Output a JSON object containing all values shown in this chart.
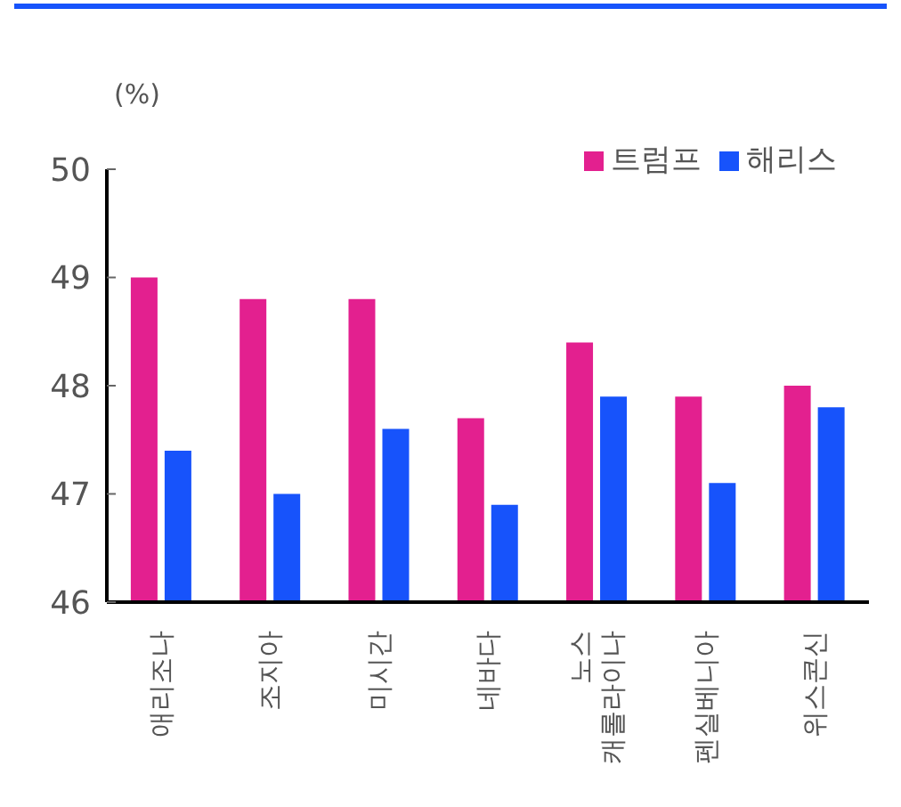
{
  "chart_data": {
    "type": "bar",
    "ylabel": "(%)",
    "categories": [
      "애리조나",
      "조지아",
      "미시간",
      "네바다",
      "노스 캐롤라이나",
      "펜실베니아",
      "위스콘신"
    ],
    "series": [
      {
        "name": "트럼프",
        "color": "#e3208f",
        "values": [
          49.0,
          48.8,
          48.8,
          47.7,
          48.4,
          47.9,
          48.0
        ]
      },
      {
        "name": "해리스",
        "color": "#1753fb",
        "values": [
          47.4,
          47.0,
          47.6,
          46.9,
          47.9,
          47.1,
          47.8
        ]
      }
    ],
    "ylim": [
      46,
      50
    ],
    "yticks": [
      46,
      47,
      48,
      49,
      50
    ],
    "grid": false,
    "legend": "top right"
  }
}
